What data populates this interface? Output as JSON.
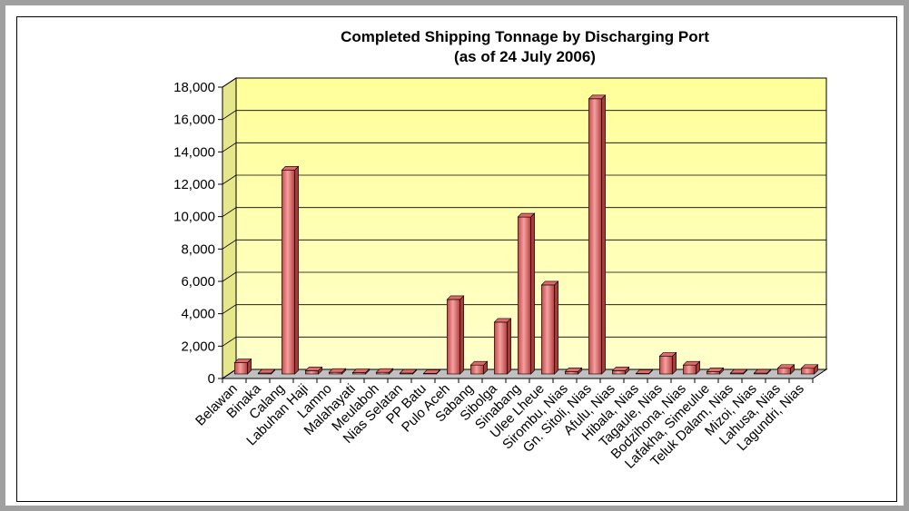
{
  "chart_data": {
    "type": "bar3d",
    "title": "Completed Shipping Tonnage by Discharging Port",
    "subtitle": "(as of 24 July 2006)",
    "categories": [
      "Belawan",
      "Binaka",
      "Calang",
      "Labuhan Haji",
      "Lamno",
      "Malahayati",
      "Meulaboh",
      "Nias Selatan",
      "PP Batu",
      "Pulo Aceh",
      "Sabang",
      "Sibolga",
      "Sinabang",
      "Ulee Lheue",
      "Sirombu, Nias",
      "Gn. Sitoli, Nias",
      "Afulu, Nias",
      "Hibala, Nias",
      "Tagaule, Nias",
      "Bodzihona, Nias",
      "Lafakha, Simeulue",
      "Teluk Dalam, Nias",
      "Mizoi, Nias",
      "Lahusa, Nias",
      "Lagundri, Nias"
    ],
    "values": [
      700,
      50,
      12600,
      200,
      100,
      80,
      100,
      50,
      30,
      4600,
      550,
      3200,
      9700,
      5500,
      150,
      17000,
      200,
      30,
      1100,
      550,
      150,
      50,
      50,
      350,
      350
    ],
    "color": "#e06a6a",
    "ylim": [
      0,
      18000
    ],
    "yticks": [
      0,
      {
        "value": 2000,
        "label": "2,000"
      },
      {
        "value": 4000,
        "label": "4,000"
      },
      {
        "value": 6000,
        "label": "6,000"
      },
      {
        "value": 8000,
        "label": "8,000"
      },
      {
        "value": 10000,
        "label": "10,000"
      },
      {
        "value": 12000,
        "label": "12,000"
      },
      {
        "value": 14000,
        "label": "14,000"
      },
      {
        "value": 16000,
        "label": "16,000"
      },
      {
        "value": 18000,
        "label": "18,000"
      }
    ],
    "grid": true
  }
}
